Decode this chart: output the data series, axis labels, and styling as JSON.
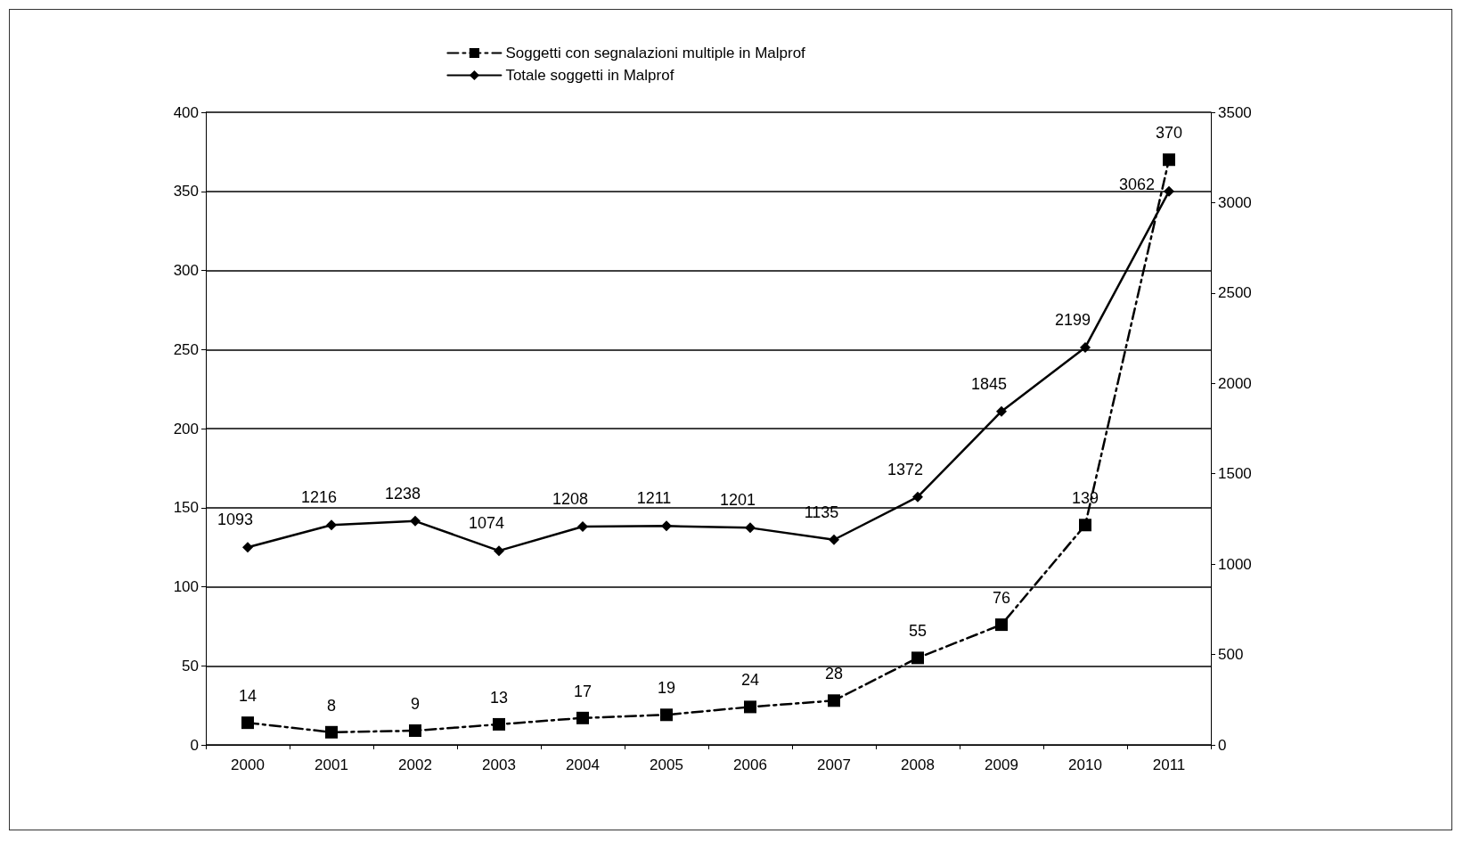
{
  "chart_data": {
    "type": "line",
    "categories": [
      "2000",
      "2001",
      "2002",
      "2003",
      "2004",
      "2005",
      "2006",
      "2007",
      "2008",
      "2009",
      "2010",
      "2011"
    ],
    "series": [
      {
        "name": "Soggetti con segnalazioni multiple in Malprof",
        "color": "#000000",
        "marker": "square",
        "line_style": "dashed",
        "values": [
          14,
          8,
          9,
          13,
          17,
          19,
          24,
          28,
          55,
          76,
          139,
          370
        ]
      },
      {
        "name": "Totale soggetti in Malprof",
        "color": "#000000",
        "marker": "diamond",
        "line_style": "solid",
        "axis": "y2",
        "values": [
          1093,
          1216,
          1238,
          1074,
          1208,
          1211,
          1201,
          1135,
          1372,
          1845,
          2199,
          3062
        ]
      }
    ],
    "ylim": [
      0,
      400
    ],
    "yticks": [
      0,
      50,
      100,
      150,
      200,
      250,
      300,
      350,
      400
    ],
    "y2lim": [
      0,
      3500
    ],
    "y2ticks": [
      0,
      500,
      1000,
      1500,
      2000,
      2500,
      3000,
      3500
    ],
    "grid": "y",
    "legend": "top",
    "data_labels": true
  }
}
